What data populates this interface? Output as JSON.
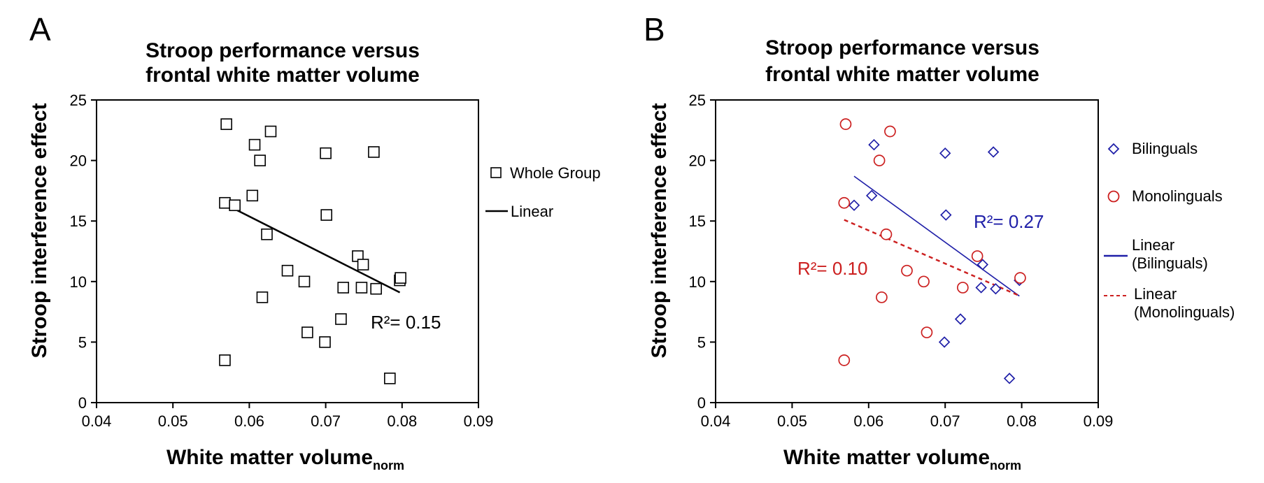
{
  "chart_data": [
    {
      "type": "scatter",
      "panel_label": "A",
      "title_line1": "Stroop performance versus",
      "title_line2": "frontal white matter volume",
      "ylabel": "Stroop interference effect",
      "xlabel_main": "White matter volume",
      "xlabel_sub": "norm",
      "xlim": [
        0.04,
        0.09
      ],
      "ylim": [
        0,
        25
      ],
      "x_ticks": [
        "0.04",
        "0.05",
        "0.06",
        "0.07",
        "0.08",
        "0.09"
      ],
      "y_ticks": [
        "0",
        "5",
        "10",
        "15",
        "20",
        "25"
      ],
      "series": [
        {
          "name": "Whole Group",
          "marker": "square",
          "color": "#000000",
          "points": [
            [
              0.057,
              23.0
            ],
            [
              0.0628,
              22.4
            ],
            [
              0.0607,
              21.3
            ],
            [
              0.0614,
              20.0
            ],
            [
              0.07,
              20.6
            ],
            [
              0.0763,
              20.7
            ],
            [
              0.0568,
              16.5
            ],
            [
              0.0581,
              16.3
            ],
            [
              0.0604,
              17.1
            ],
            [
              0.0701,
              15.5
            ],
            [
              0.0623,
              13.9
            ],
            [
              0.0742,
              12.1
            ],
            [
              0.0749,
              11.4
            ],
            [
              0.065,
              10.9
            ],
            [
              0.0672,
              10.0
            ],
            [
              0.0723,
              9.5
            ],
            [
              0.0747,
              9.5
            ],
            [
              0.0766,
              9.4
            ],
            [
              0.0797,
              10.1
            ],
            [
              0.0798,
              10.3
            ],
            [
              0.0617,
              8.7
            ],
            [
              0.072,
              6.9
            ],
            [
              0.0676,
              5.8
            ],
            [
              0.0699,
              5.0
            ],
            [
              0.0568,
              3.5
            ],
            [
              0.0784,
              2.0
            ]
          ]
        }
      ],
      "fits": [
        {
          "name": "Linear",
          "color": "#000000",
          "dashed": false,
          "x": [
            0.0568,
            0.0797
          ],
          "y": [
            16.4,
            9.1
          ]
        }
      ],
      "annotations": [
        {
          "label": "R²= 0.15",
          "color": "#000000"
        }
      ]
    },
    {
      "type": "scatter",
      "panel_label": "B",
      "title_line1": "Stroop performance versus",
      "title_line2": "frontal white matter volume",
      "ylabel": "Stroop interference effect",
      "xlabel_main": "White matter volume",
      "xlabel_sub": "norm",
      "xlim": [
        0.04,
        0.09
      ],
      "ylim": [
        0,
        25
      ],
      "x_ticks": [
        "0.04",
        "0.05",
        "0.06",
        "0.07",
        "0.08",
        "0.09"
      ],
      "y_ticks": [
        "0",
        "5",
        "10",
        "15",
        "20",
        "25"
      ],
      "series": [
        {
          "name": "Bilinguals",
          "marker": "diamond",
          "color": "#1f1fa8",
          "points": [
            [
              0.0607,
              21.3
            ],
            [
              0.07,
              20.6
            ],
            [
              0.0763,
              20.7
            ],
            [
              0.0581,
              16.3
            ],
            [
              0.0604,
              17.1
            ],
            [
              0.0701,
              15.5
            ],
            [
              0.0749,
              11.4
            ],
            [
              0.0747,
              9.5
            ],
            [
              0.0766,
              9.4
            ],
            [
              0.0797,
              10.1
            ],
            [
              0.072,
              6.9
            ],
            [
              0.0699,
              5.0
            ],
            [
              0.0784,
              2.0
            ]
          ]
        },
        {
          "name": "Monolinguals",
          "marker": "circle",
          "color": "#cc2020",
          "points": [
            [
              0.057,
              23.0
            ],
            [
              0.0628,
              22.4
            ],
            [
              0.0614,
              20.0
            ],
            [
              0.0568,
              16.5
            ],
            [
              0.0623,
              13.9
            ],
            [
              0.0742,
              12.1
            ],
            [
              0.065,
              10.9
            ],
            [
              0.0672,
              10.0
            ],
            [
              0.0723,
              9.5
            ],
            [
              0.0798,
              10.3
            ],
            [
              0.0617,
              8.7
            ],
            [
              0.0676,
              5.8
            ],
            [
              0.0568,
              3.5
            ]
          ]
        }
      ],
      "fits": [
        {
          "name": "Linear (Bilinguals)",
          "color": "#1f1fa8",
          "dashed": false,
          "x": [
            0.0581,
            0.0797
          ],
          "y": [
            18.7,
            8.8
          ]
        },
        {
          "name": "Linear (Monolinguals)",
          "color": "#cc2020",
          "dashed": true,
          "x": [
            0.0568,
            0.0798
          ],
          "y": [
            15.1,
            8.8
          ]
        }
      ],
      "annotations": [
        {
          "label": "R²= 0.27",
          "color": "#1f1fa8"
        },
        {
          "label": "R²= 0.10",
          "color": "#cc2020"
        }
      ],
      "legend": {
        "items": [
          {
            "marker": "diamond",
            "line1": "Bilinguals",
            "line2": ""
          },
          {
            "marker": "circle",
            "line1": "Monolinguals",
            "line2": ""
          },
          {
            "marker": "line",
            "line1": "Linear",
            "line2": "(Bilinguals)"
          },
          {
            "marker": "dashed",
            "line1": "Linear",
            "line2": "(Monolinguals)"
          }
        ]
      }
    }
  ]
}
